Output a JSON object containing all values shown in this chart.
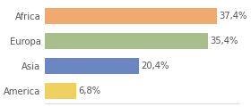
{
  "categories": [
    "America",
    "Asia",
    "Europa",
    "Africa"
  ],
  "values": [
    6.8,
    20.4,
    35.4,
    37.4
  ],
  "labels": [
    "6,8%",
    "20,4%",
    "35,4%",
    "37,4%"
  ],
  "bar_colors": [
    "#f0d060",
    "#6b86c0",
    "#a8be8c",
    "#f0a96e"
  ],
  "background_color": "#ffffff",
  "xlim": [
    0,
    42
  ],
  "bar_height": 0.62,
  "label_fontsize": 7.2,
  "tick_fontsize": 7.2
}
